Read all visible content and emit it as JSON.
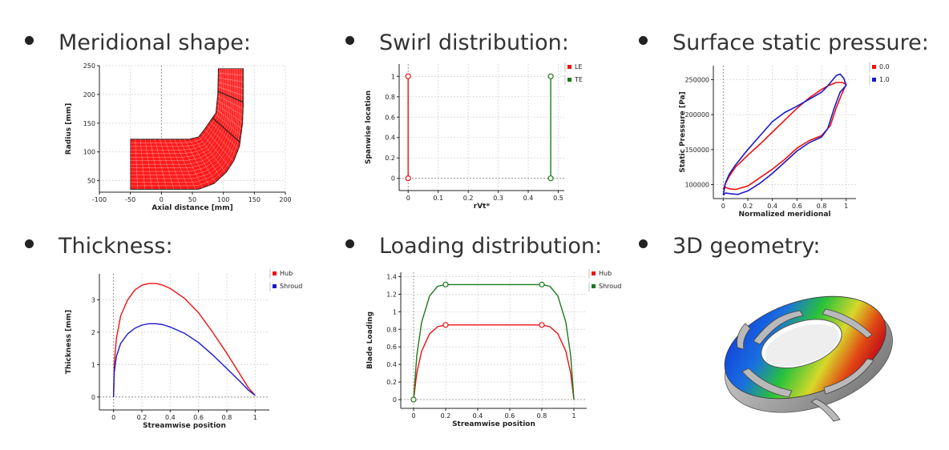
{
  "sections": [
    {
      "heading": "Meridional shape:"
    },
    {
      "heading": "Swirl distribution:"
    },
    {
      "heading": "Surface static pressure:"
    },
    {
      "heading": "Thickness:"
    },
    {
      "heading": "Loading distribution:"
    },
    {
      "heading": "3D geometry:"
    }
  ],
  "colors": {
    "red": "#ee1111",
    "blue": "#1a1acc",
    "green": "#1d7a1d",
    "mesh": "#ff1a1a"
  },
  "chart_data": [
    {
      "id": "meridional",
      "type": "area",
      "xlabel": "Axial distance [mm]",
      "ylabel": "Radius [mm]",
      "xlim": [
        -100,
        200
      ],
      "ylim": [
        30,
        250
      ],
      "xticks": [
        -100,
        -50,
        0,
        50,
        100,
        150,
        200
      ],
      "yticks": [
        50,
        100,
        150,
        200,
        250
      ],
      "hub": [
        [
          -50,
          35
        ],
        [
          60,
          35
        ],
        [
          85,
          45
        ],
        [
          105,
          65
        ],
        [
          117,
          85
        ],
        [
          126,
          110
        ],
        [
          131,
          150
        ],
        [
          132,
          180
        ],
        [
          132,
          245
        ]
      ],
      "shroud": [
        [
          -50,
          122
        ],
        [
          45,
          122
        ],
        [
          60,
          126
        ],
        [
          70,
          140
        ],
        [
          88,
          168
        ],
        [
          91,
          200
        ],
        [
          92,
          245
        ]
      ],
      "inlet_x": -50,
      "outlet_r": 245,
      "grid": true
    },
    {
      "id": "swirl",
      "type": "line",
      "xlabel": "rVt*",
      "ylabel": "Spanwise location",
      "xlim": [
        -0.03,
        0.52
      ],
      "ylim": [
        -0.12,
        1.12
      ],
      "xticks": [
        0,
        0.1,
        0.2,
        0.3,
        0.4,
        0.5
      ],
      "yticks": [
        0,
        0.2,
        0.4,
        0.6,
        0.8,
        1
      ],
      "legend": "top-right",
      "series": [
        {
          "name": "LE",
          "color": "#ee1111",
          "x": [
            0,
            0
          ],
          "y": [
            0,
            1
          ]
        },
        {
          "name": "TE",
          "color": "#1d7a1d",
          "x": [
            0.475,
            0.475
          ],
          "y": [
            0,
            1
          ]
        }
      ],
      "grid": true
    },
    {
      "id": "pressure",
      "type": "line",
      "xlabel": "Normalized meridional",
      "ylabel": "Static Pressure [Pa]",
      "xlim": [
        -0.08,
        1.08
      ],
      "ylim": [
        80000,
        270000
      ],
      "xticks": [
        0,
        0.2,
        0.4,
        0.6,
        0.8,
        1
      ],
      "yticks": [
        100000,
        150000,
        200000,
        250000
      ],
      "legend": "top-right",
      "series": [
        {
          "name": "0.0",
          "color": "#ee1111",
          "x": [
            0,
            0.02,
            0.05,
            0.1,
            0.2,
            0.3,
            0.4,
            0.5,
            0.6,
            0.7,
            0.8,
            0.87,
            0.92,
            0.97,
            1,
            0.97,
            0.92,
            0.85,
            0.8,
            0.7,
            0.6,
            0.5,
            0.4,
            0.3,
            0.2,
            0.1,
            0.05,
            0.02,
            0
          ],
          "y": [
            93000,
            96000,
            94000,
            93000,
            98000,
            110000,
            122000,
            136000,
            152000,
            163000,
            170000,
            184000,
            210000,
            232000,
            243000,
            246000,
            246000,
            241000,
            236000,
            224000,
            209000,
            192000,
            175000,
            158000,
            142000,
            125000,
            112000,
            102000,
            93000
          ]
        },
        {
          "name": "1.0",
          "color": "#1a1acc",
          "x": [
            0,
            0.02,
            0.06,
            0.12,
            0.2,
            0.3,
            0.4,
            0.5,
            0.6,
            0.7,
            0.8,
            0.85,
            0.9,
            0.95,
            1,
            0.98,
            0.95,
            0.92,
            0.85,
            0.8,
            0.7,
            0.6,
            0.5,
            0.4,
            0.3,
            0.2,
            0.1,
            0.05,
            0.02,
            0
          ],
          "y": [
            85000,
            88000,
            87000,
            86000,
            91000,
            102000,
            116000,
            132000,
            148000,
            160000,
            168000,
            180000,
            208000,
            232000,
            242000,
            252000,
            258000,
            256000,
            241000,
            232000,
            222000,
            212000,
            203000,
            190000,
            170000,
            150000,
            128000,
            115000,
            103000,
            85000
          ]
        }
      ],
      "grid": true
    },
    {
      "id": "thickness",
      "type": "line",
      "xlabel": "Streamwise position",
      "ylabel": "Thickness [mm]",
      "xlim": [
        -0.1,
        1.1
      ],
      "ylim": [
        -0.4,
        3.8
      ],
      "xticks": [
        0,
        0.2,
        0.4,
        0.6,
        0.8,
        1
      ],
      "yticks": [
        0,
        1,
        2,
        3
      ],
      "legend": "top-right",
      "series": [
        {
          "name": "Hub",
          "color": "#ee1111",
          "x": [
            0,
            0.005,
            0.02,
            0.05,
            0.1,
            0.15,
            0.2,
            0.25,
            0.3,
            0.35,
            0.4,
            0.5,
            0.6,
            0.7,
            0.8,
            0.9,
            0.95,
            1
          ],
          "y": [
            0,
            1.0,
            1.8,
            2.5,
            3.0,
            3.3,
            3.45,
            3.5,
            3.5,
            3.45,
            3.35,
            3.05,
            2.6,
            2.0,
            1.35,
            0.65,
            0.3,
            0.05
          ]
        },
        {
          "name": "Shroud",
          "color": "#1a1acc",
          "x": [
            0,
            0.005,
            0.02,
            0.05,
            0.1,
            0.15,
            0.2,
            0.25,
            0.3,
            0.35,
            0.4,
            0.5,
            0.6,
            0.7,
            0.8,
            0.9,
            0.95,
            1
          ],
          "y": [
            0,
            0.75,
            1.25,
            1.65,
            1.95,
            2.12,
            2.22,
            2.26,
            2.26,
            2.23,
            2.16,
            1.97,
            1.68,
            1.3,
            0.88,
            0.45,
            0.22,
            0.05
          ]
        }
      ],
      "grid": true
    },
    {
      "id": "loading",
      "type": "line",
      "xlabel": "Streamwise position",
      "ylabel": "Blade Loading",
      "xlim": [
        -0.08,
        1.08
      ],
      "ylim": [
        -0.1,
        1.45
      ],
      "xticks": [
        0,
        0.2,
        0.4,
        0.6,
        0.8,
        1
      ],
      "yticks": [
        0,
        0.2,
        0.4,
        0.6,
        0.8,
        1,
        1.2,
        1.4
      ],
      "legend": "top-right",
      "series": [
        {
          "name": "Hub",
          "color": "#ee1111",
          "x": [
            0,
            0.02,
            0.05,
            0.1,
            0.15,
            0.2,
            0.8,
            0.85,
            0.9,
            0.95,
            0.98,
            1
          ],
          "y": [
            0,
            0.3,
            0.55,
            0.75,
            0.83,
            0.85,
            0.85,
            0.83,
            0.75,
            0.55,
            0.3,
            0
          ],
          "markers_at": [
            0.2,
            0.8
          ]
        },
        {
          "name": "Shroud",
          "color": "#1d7a1d",
          "x": [
            0,
            0.02,
            0.05,
            0.1,
            0.15,
            0.2,
            0.8,
            0.85,
            0.9,
            0.95,
            0.98,
            1
          ],
          "y": [
            0,
            0.5,
            0.88,
            1.18,
            1.29,
            1.31,
            1.31,
            1.29,
            1.18,
            0.88,
            0.5,
            0
          ],
          "markers_at": [
            0,
            0.2,
            0.8
          ]
        }
      ],
      "grid": true
    }
  ]
}
